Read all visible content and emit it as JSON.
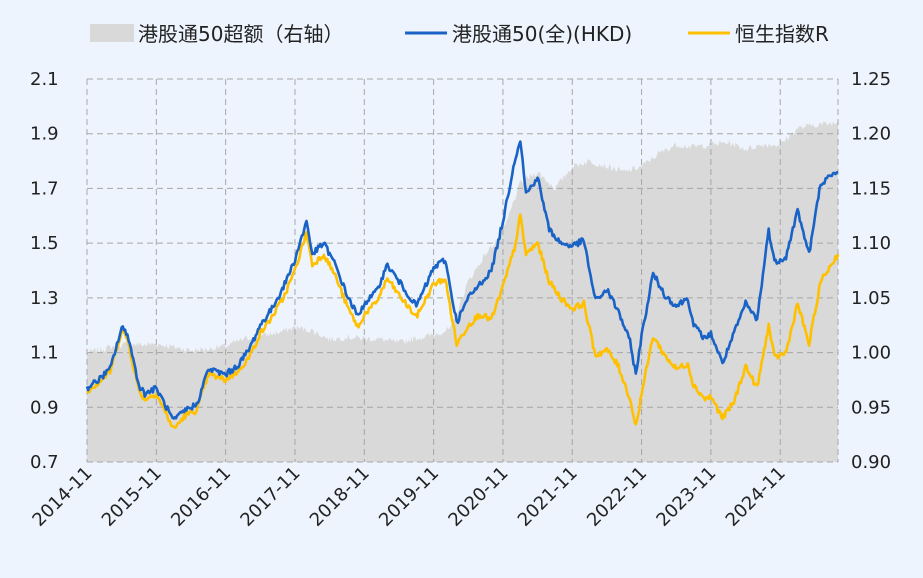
{
  "chart_data": {
    "type": "line",
    "title": "",
    "legend_position": "top",
    "grid": true,
    "x_axis": {
      "ticks": [
        "2014-11",
        "2015-11",
        "2016-11",
        "2017-11",
        "2018-11",
        "2019-11",
        "2020-11",
        "2021-11",
        "2022-11",
        "2023-11",
        "2024-11"
      ],
      "range": [
        "2014-11",
        "2025-09"
      ]
    },
    "y_left": {
      "range": [
        0.7,
        2.1
      ],
      "ticks": [
        "0.7",
        "0.9",
        "1.1",
        "1.3",
        "1.5",
        "1.7",
        "1.9",
        "2.1"
      ]
    },
    "y_right": {
      "range": [
        0.9,
        1.25
      ],
      "ticks": [
        "0.90",
        "0.95",
        "1.00",
        "1.05",
        "1.10",
        "1.15",
        "1.20",
        "1.25"
      ]
    },
    "series": [
      {
        "name": "港股通50超额（右轴）",
        "type": "area",
        "axis": "right",
        "color": "#d9d9d9",
        "points": [
          [
            "2014-11",
            1.0
          ],
          [
            "2015-01",
            1.002
          ],
          [
            "2015-03",
            1.005
          ],
          [
            "2015-06",
            1.008
          ],
          [
            "2015-09",
            1.007
          ],
          [
            "2015-11",
            1.008
          ],
          [
            "2016-02",
            1.005
          ],
          [
            "2016-05",
            1.002
          ],
          [
            "2016-08",
            1.003
          ],
          [
            "2016-11",
            1.006
          ],
          [
            "2017-02",
            1.012
          ],
          [
            "2017-05",
            1.015
          ],
          [
            "2017-08",
            1.018
          ],
          [
            "2017-11",
            1.023
          ],
          [
            "2018-02",
            1.02
          ],
          [
            "2018-05",
            1.012
          ],
          [
            "2018-08",
            1.014
          ],
          [
            "2018-11",
            1.013
          ],
          [
            "2019-02",
            1.012
          ],
          [
            "2019-05",
            1.009
          ],
          [
            "2019-08",
            1.013
          ],
          [
            "2019-11",
            1.016
          ],
          [
            "2020-02",
            1.022
          ],
          [
            "2020-05",
            1.065
          ],
          [
            "2020-08",
            1.09
          ],
          [
            "2020-11",
            1.11
          ],
          [
            "2021-02",
            1.155
          ],
          [
            "2021-05",
            1.165
          ],
          [
            "2021-08",
            1.15
          ],
          [
            "2021-11",
            1.17
          ],
          [
            "2022-02",
            1.175
          ],
          [
            "2022-05",
            1.17
          ],
          [
            "2022-08",
            1.165
          ],
          [
            "2022-11",
            1.17
          ],
          [
            "2023-02",
            1.182
          ],
          [
            "2023-05",
            1.19
          ],
          [
            "2023-08",
            1.188
          ],
          [
            "2023-11",
            1.19
          ],
          [
            "2024-02",
            1.192
          ],
          [
            "2024-05",
            1.186
          ],
          [
            "2024-08",
            1.19
          ],
          [
            "2024-11",
            1.19
          ],
          [
            "2025-02",
            1.205
          ],
          [
            "2025-05",
            1.208
          ],
          [
            "2025-09",
            1.21
          ]
        ]
      },
      {
        "name": "港股通50(全)(HKD)",
        "type": "line",
        "axis": "left",
        "color": "#1a63c6",
        "points": [
          [
            "2014-11",
            0.97
          ],
          [
            "2015-01",
            1.0
          ],
          [
            "2015-03",
            1.04
          ],
          [
            "2015-05",
            1.19
          ],
          [
            "2015-06",
            1.17
          ],
          [
            "2015-08",
            0.98
          ],
          [
            "2015-09",
            0.95
          ],
          [
            "2015-11",
            0.97
          ],
          [
            "2016-02",
            0.85
          ],
          [
            "2016-04",
            0.89
          ],
          [
            "2016-06",
            0.91
          ],
          [
            "2016-08",
            1.04
          ],
          [
            "2016-11",
            1.02
          ],
          [
            "2017-01",
            1.05
          ],
          [
            "2017-03",
            1.11
          ],
          [
            "2017-05",
            1.2
          ],
          [
            "2017-07",
            1.26
          ],
          [
            "2017-09",
            1.34
          ],
          [
            "2017-11",
            1.44
          ],
          [
            "2018-01",
            1.58
          ],
          [
            "2018-02",
            1.46
          ],
          [
            "2018-04",
            1.5
          ],
          [
            "2018-06",
            1.42
          ],
          [
            "2018-08",
            1.31
          ],
          [
            "2018-10",
            1.23
          ],
          [
            "2018-11",
            1.28
          ],
          [
            "2019-01",
            1.32
          ],
          [
            "2019-03",
            1.42
          ],
          [
            "2019-05",
            1.36
          ],
          [
            "2019-08",
            1.27
          ],
          [
            "2019-10",
            1.36
          ],
          [
            "2019-11",
            1.41
          ],
          [
            "2020-01",
            1.44
          ],
          [
            "2020-03",
            1.21
          ],
          [
            "2020-05",
            1.3
          ],
          [
            "2020-07",
            1.35
          ],
          [
            "2020-09",
            1.4
          ],
          [
            "2020-11",
            1.58
          ],
          [
            "2021-01",
            1.8
          ],
          [
            "2021-02",
            1.88
          ],
          [
            "2021-03",
            1.68
          ],
          [
            "2021-05",
            1.74
          ],
          [
            "2021-07",
            1.55
          ],
          [
            "2021-09",
            1.5
          ],
          [
            "2021-11",
            1.49
          ],
          [
            "2022-01",
            1.51
          ],
          [
            "2022-03",
            1.29
          ],
          [
            "2022-05",
            1.33
          ],
          [
            "2022-07",
            1.25
          ],
          [
            "2022-09",
            1.14
          ],
          [
            "2022-10",
            1.02
          ],
          [
            "2022-11",
            1.16
          ],
          [
            "2023-01",
            1.39
          ],
          [
            "2023-03",
            1.31
          ],
          [
            "2023-05",
            1.27
          ],
          [
            "2023-07",
            1.3
          ],
          [
            "2023-08",
            1.2
          ],
          [
            "2023-10",
            1.15
          ],
          [
            "2023-11",
            1.17
          ],
          [
            "2024-01",
            1.06
          ],
          [
            "2024-03",
            1.17
          ],
          [
            "2024-05",
            1.28
          ],
          [
            "2024-07",
            1.22
          ],
          [
            "2024-09",
            1.55
          ],
          [
            "2024-10",
            1.43
          ],
          [
            "2024-12",
            1.45
          ],
          [
            "2025-02",
            1.62
          ],
          [
            "2025-04",
            1.46
          ],
          [
            "2025-06",
            1.72
          ],
          [
            "2025-09",
            1.76
          ]
        ]
      },
      {
        "name": "恒生指数R",
        "type": "line",
        "axis": "left",
        "color": "#ffc000",
        "points": [
          [
            "2014-11",
            0.96
          ],
          [
            "2015-01",
            0.99
          ],
          [
            "2015-03",
            1.03
          ],
          [
            "2015-05",
            1.18
          ],
          [
            "2015-06",
            1.15
          ],
          [
            "2015-08",
            0.96
          ],
          [
            "2015-09",
            0.93
          ],
          [
            "2015-11",
            0.95
          ],
          [
            "2016-02",
            0.82
          ],
          [
            "2016-04",
            0.87
          ],
          [
            "2016-06",
            0.89
          ],
          [
            "2016-08",
            1.02
          ],
          [
            "2016-11",
            1.0
          ],
          [
            "2017-01",
            1.03
          ],
          [
            "2017-03",
            1.08
          ],
          [
            "2017-05",
            1.17
          ],
          [
            "2017-07",
            1.23
          ],
          [
            "2017-09",
            1.3
          ],
          [
            "2017-11",
            1.4
          ],
          [
            "2018-01",
            1.54
          ],
          [
            "2018-02",
            1.42
          ],
          [
            "2018-04",
            1.46
          ],
          [
            "2018-06",
            1.38
          ],
          [
            "2018-08",
            1.27
          ],
          [
            "2018-10",
            1.19
          ],
          [
            "2018-11",
            1.24
          ],
          [
            "2019-01",
            1.28
          ],
          [
            "2019-03",
            1.37
          ],
          [
            "2019-05",
            1.31
          ],
          [
            "2019-08",
            1.23
          ],
          [
            "2019-10",
            1.31
          ],
          [
            "2019-11",
            1.35
          ],
          [
            "2020-01",
            1.37
          ],
          [
            "2020-03",
            1.13
          ],
          [
            "2020-05",
            1.2
          ],
          [
            "2020-07",
            1.24
          ],
          [
            "2020-09",
            1.22
          ],
          [
            "2020-11",
            1.34
          ],
          [
            "2021-01",
            1.48
          ],
          [
            "2021-02",
            1.6
          ],
          [
            "2021-03",
            1.46
          ],
          [
            "2021-05",
            1.5
          ],
          [
            "2021-07",
            1.36
          ],
          [
            "2021-09",
            1.3
          ],
          [
            "2021-11",
            1.26
          ],
          [
            "2022-01",
            1.28
          ],
          [
            "2022-03",
            1.09
          ],
          [
            "2022-05",
            1.11
          ],
          [
            "2022-07",
            1.05
          ],
          [
            "2022-09",
            0.93
          ],
          [
            "2022-10",
            0.83
          ],
          [
            "2022-11",
            0.95
          ],
          [
            "2023-01",
            1.16
          ],
          [
            "2023-03",
            1.09
          ],
          [
            "2023-05",
            1.04
          ],
          [
            "2023-07",
            1.06
          ],
          [
            "2023-08",
            0.98
          ],
          [
            "2023-10",
            0.93
          ],
          [
            "2023-11",
            0.94
          ],
          [
            "2024-01",
            0.86
          ],
          [
            "2024-03",
            0.92
          ],
          [
            "2024-05",
            1.05
          ],
          [
            "2024-07",
            0.97
          ],
          [
            "2024-09",
            1.2
          ],
          [
            "2024-10",
            1.08
          ],
          [
            "2024-12",
            1.1
          ],
          [
            "2025-02",
            1.28
          ],
          [
            "2025-04",
            1.13
          ],
          [
            "2025-06",
            1.36
          ],
          [
            "2025-09",
            1.46
          ]
        ]
      }
    ]
  }
}
